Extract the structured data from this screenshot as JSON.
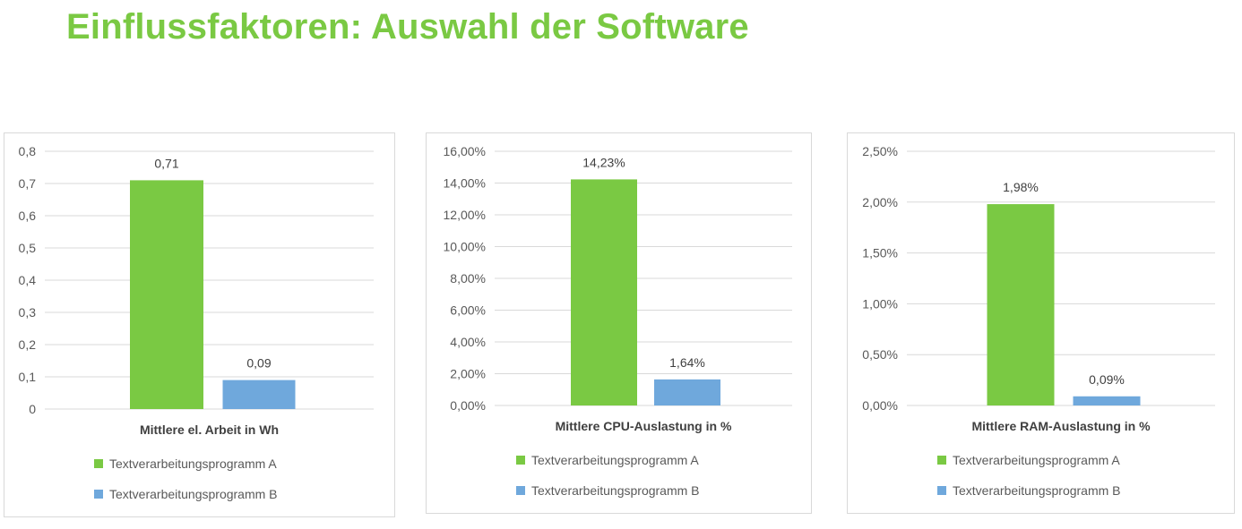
{
  "title": "Einflussfaktoren: Auswahl der Software",
  "colors": {
    "title": "#7ac943",
    "series_a": "#7ac943",
    "series_b": "#6fa8dc",
    "grid": "#d9d9d9"
  },
  "chart_data": [
    {
      "type": "bar",
      "xlabel": "Mittlere el. Arbeit in Wh",
      "ylim": [
        0,
        0.8
      ],
      "y_ticks": [
        "0",
        "0,1",
        "0,2",
        "0,3",
        "0,4",
        "0,5",
        "0,6",
        "0,7",
        "0,8"
      ],
      "grid": true,
      "legend_position": "bottom",
      "series": [
        {
          "name": "Textverarbeitungsprogramm A",
          "value": 0.71,
          "label": "0,71"
        },
        {
          "name": "Textverarbeitungsprogramm B",
          "value": 0.09,
          "label": "0,09"
        }
      ]
    },
    {
      "type": "bar",
      "xlabel": "Mittlere CPU-Auslastung in %",
      "ylim": [
        0,
        16
      ],
      "y_ticks": [
        "0,00%",
        "2,00%",
        "4,00%",
        "6,00%",
        "8,00%",
        "10,00%",
        "12,00%",
        "14,00%",
        "16,00%"
      ],
      "grid": true,
      "legend_position": "bottom",
      "series": [
        {
          "name": "Textverarbeitungsprogramm A",
          "value": 14.23,
          "label": "14,23%"
        },
        {
          "name": "Textverarbeitungsprogramm B",
          "value": 1.64,
          "label": "1,64%"
        }
      ]
    },
    {
      "type": "bar",
      "xlabel": "Mittlere RAM-Auslastung in %",
      "ylim": [
        0,
        2.5
      ],
      "y_ticks": [
        "0,00%",
        "0,50%",
        "1,00%",
        "1,50%",
        "2,00%",
        "2,50%"
      ],
      "grid": true,
      "legend_position": "bottom",
      "series": [
        {
          "name": "Textverarbeitungsprogramm A",
          "value": 1.98,
          "label": "1,98%"
        },
        {
          "name": "Textverarbeitungsprogramm B",
          "value": 0.09,
          "label": "0,09%"
        }
      ]
    }
  ]
}
